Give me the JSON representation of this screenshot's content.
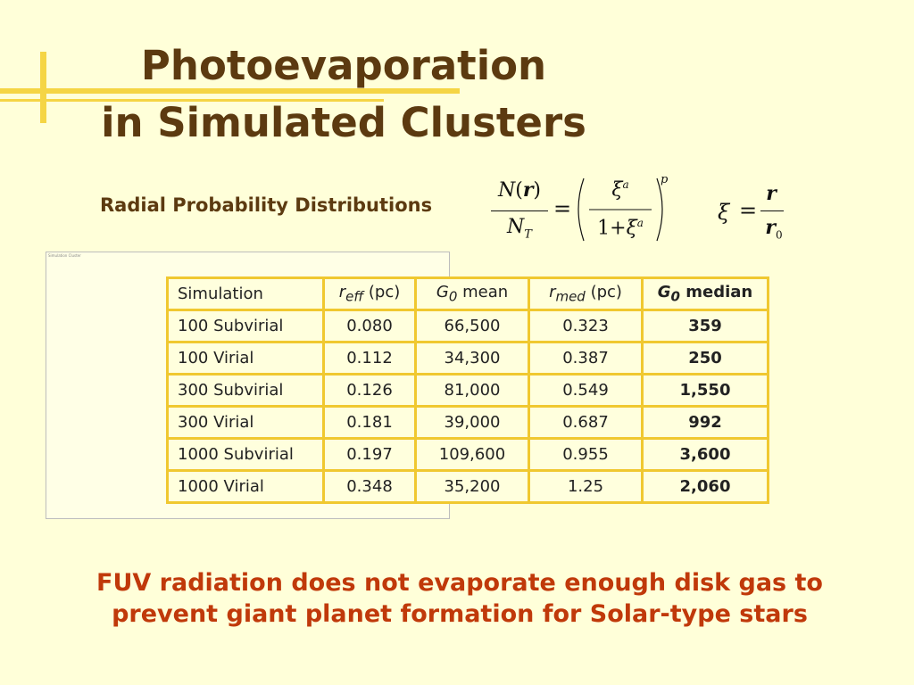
{
  "title": {
    "line1": "Photoevaporation",
    "line2": "in Simulated Clusters"
  },
  "subtitle": "Radial Probability Distributions",
  "equation": {
    "lhs_num": "N",
    "lhs_num_arg_open": "(",
    "lhs_num_arg": "r",
    "lhs_num_arg_close": ")",
    "lhs_den": "N",
    "lhs_den_sub": "T",
    "equals": "=",
    "rhs_num": "ξ",
    "rhs_num_sup": "a",
    "rhs_den_one": "1",
    "rhs_den_plus": "+",
    "rhs_den": "ξ",
    "rhs_den_sup": "a",
    "power": "p",
    "xi": "ξ",
    "xi_equals": "=",
    "xi_num": "r",
    "xi_den": "r",
    "xi_den_sub": "0"
  },
  "placeholder_caption": "Simulation Cluster",
  "table": {
    "headers": [
      {
        "main": "Simulation",
        "sub": "",
        "suffix": ""
      },
      {
        "main": "r",
        "sub": "eff",
        "suffix": " (pc)"
      },
      {
        "main": "G",
        "sub": "0",
        "suffix": " mean"
      },
      {
        "main": "r",
        "sub": "med",
        "suffix": " (pc)"
      },
      {
        "main": "G",
        "sub": "0",
        "suffix": " median"
      }
    ],
    "rows": [
      [
        "100 Subvirial",
        "0.080",
        "66,500",
        "0.323",
        "359"
      ],
      [
        "100 Virial",
        "0.112",
        "34,300",
        "0.387",
        "250"
      ],
      [
        "300 Subvirial",
        "0.126",
        "81,000",
        "0.549",
        "1,550"
      ],
      [
        "300 Virial",
        "0.181",
        "39,000",
        "0.687",
        "992"
      ],
      [
        "1000 Subvirial",
        "0.197",
        "109,600",
        "0.955",
        "3,600"
      ],
      [
        "1000 Virial",
        "0.348",
        "35,200",
        "1.25",
        "2,060"
      ]
    ]
  },
  "conclusion": {
    "line1": "FUV radiation does not evaporate enough disk gas to",
    "line2": "prevent giant planet formation for Solar-type stars"
  },
  "colors": {
    "background": "#FFFFD9",
    "accent_yellow": "#F5D545",
    "title_brown": "#5C3A10",
    "conclusion_orange": "#C0390A",
    "table_border": "#F0C830"
  }
}
